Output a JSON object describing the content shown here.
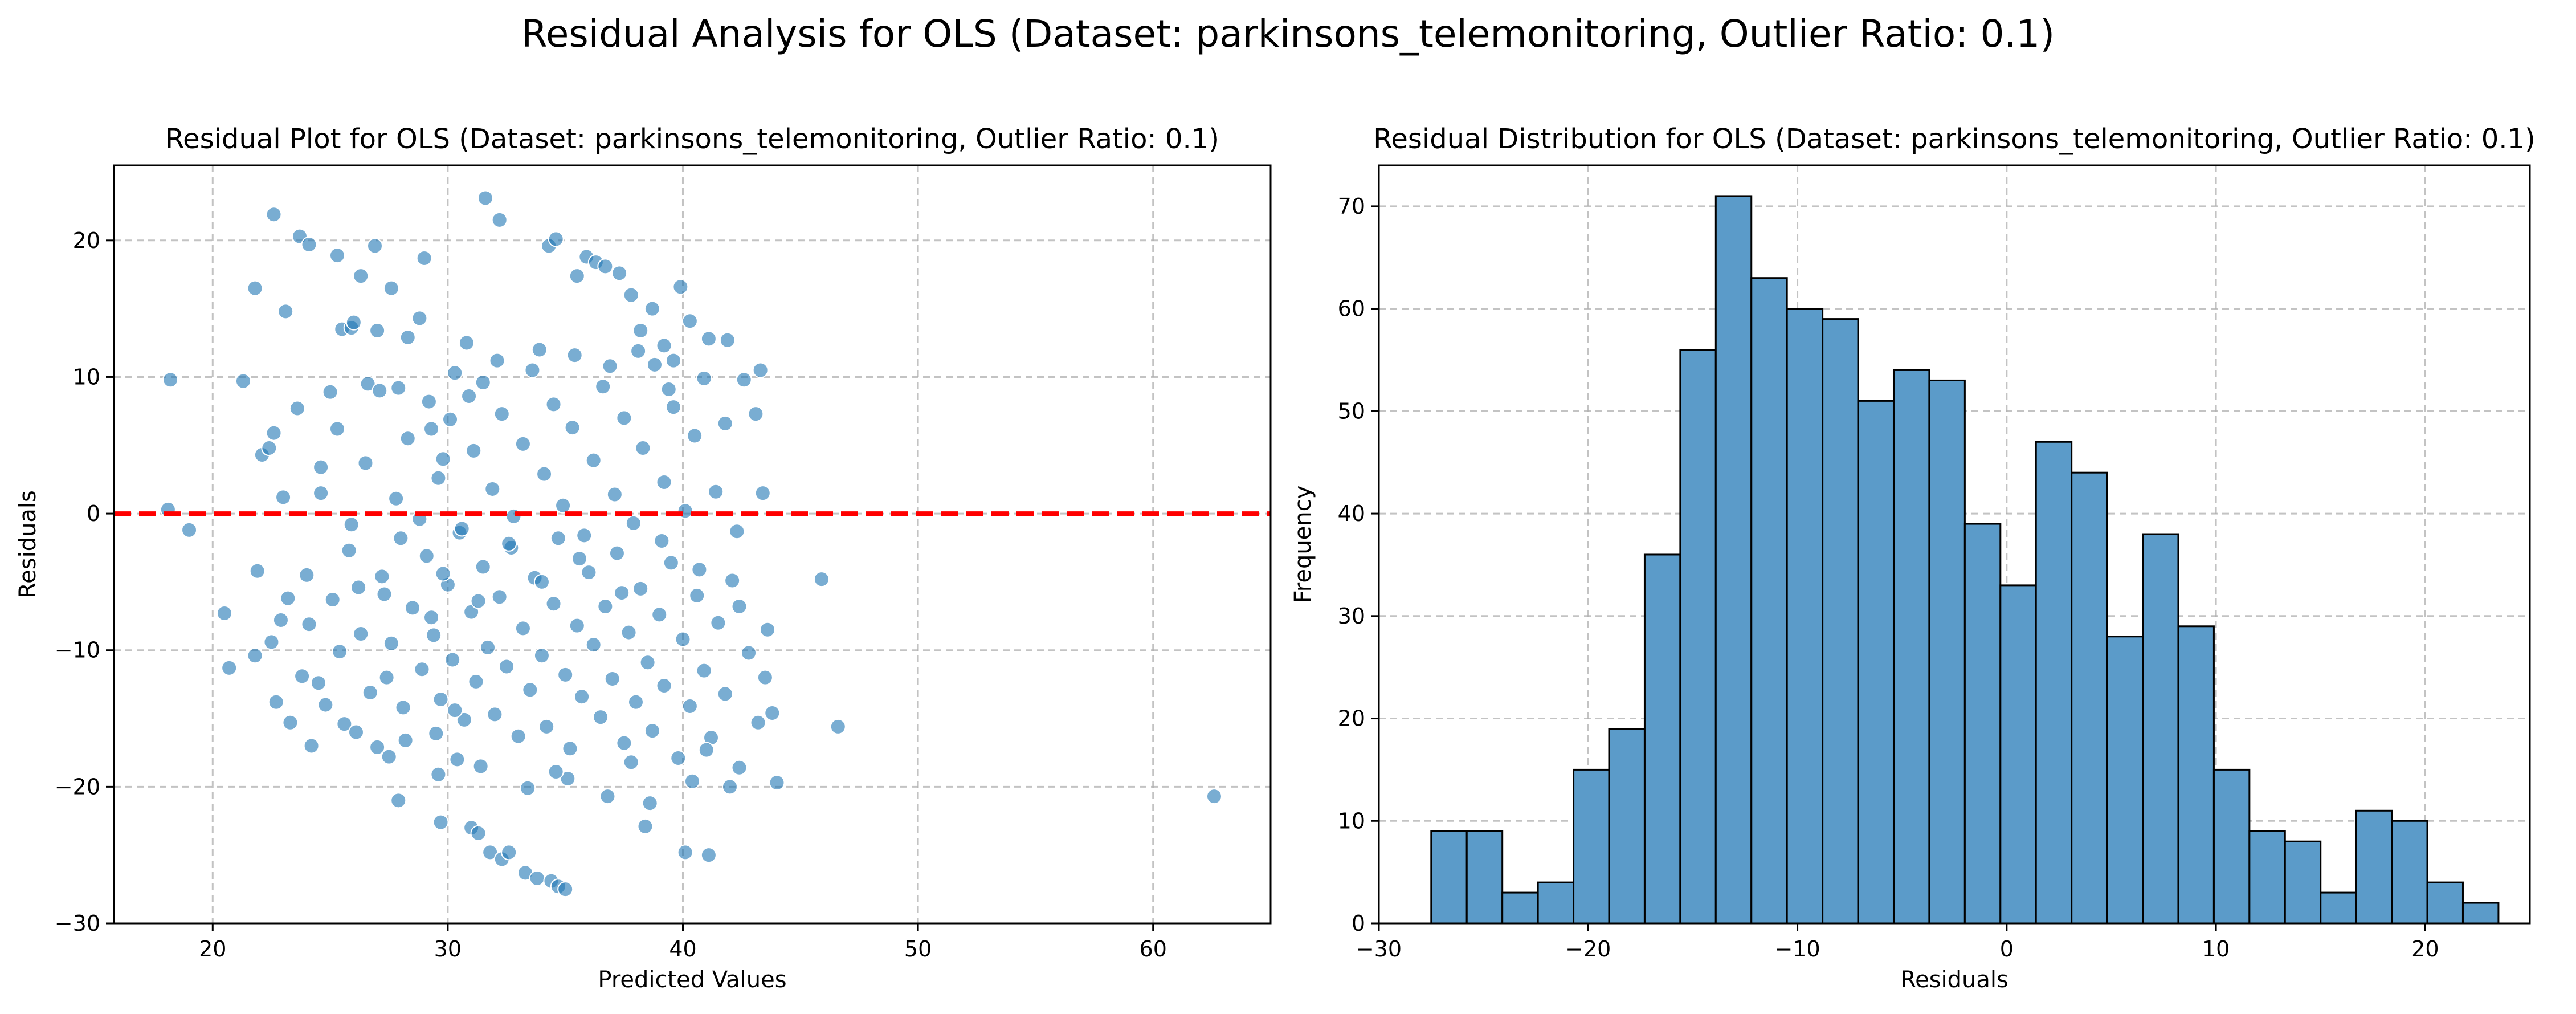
{
  "suptitle": "Residual Analysis for OLS (Dataset: parkinsons_telemonitoring, Outlier Ratio: 0.1)",
  "colors": {
    "point": "#1f77b4",
    "zero_line": "#ff0000",
    "hist_fill": "#5b9bc9",
    "hist_edge": "#000000",
    "grid": "#b0b0b0"
  },
  "chart_data": [
    {
      "type": "scatter",
      "title": "Residual Plot for OLS (Dataset: parkinsons_telemonitoring, Outlier Ratio: 0.1)",
      "xlabel": "Predicted Values",
      "ylabel": "Residuals",
      "xlim": [
        15.8,
        65
      ],
      "ylim": [
        -30,
        25.5
      ],
      "xticks": [
        20,
        30,
        40,
        50,
        60
      ],
      "yticks": [
        -30,
        -20,
        -10,
        0,
        10,
        20
      ],
      "grid": true,
      "reference_line": {
        "y": 0,
        "style": "dashed",
        "color": "#ff0000"
      },
      "points": [
        [
          18.2,
          9.8
        ],
        [
          18.1,
          0.3
        ],
        [
          19.0,
          -1.2
        ],
        [
          20.5,
          -7.3
        ],
        [
          20.7,
          -11.3
        ],
        [
          21.3,
          9.7
        ],
        [
          21.8,
          16.5
        ],
        [
          21.9,
          -4.2
        ],
        [
          21.8,
          -10.4
        ],
        [
          22.1,
          4.3
        ],
        [
          22.4,
          4.8
        ],
        [
          22.6,
          21.9
        ],
        [
          22.6,
          5.9
        ],
        [
          22.7,
          -13.8
        ],
        [
          23.1,
          14.8
        ],
        [
          23.0,
          1.2
        ],
        [
          23.3,
          -15.3
        ],
        [
          23.6,
          7.7
        ],
        [
          23.7,
          20.3
        ],
        [
          24.1,
          19.7
        ],
        [
          24.0,
          -4.5
        ],
        [
          24.2,
          -17.0
        ],
        [
          24.6,
          3.4
        ],
        [
          25.0,
          8.9
        ],
        [
          25.5,
          13.5
        ],
        [
          25.3,
          18.9
        ],
        [
          25.6,
          -15.4
        ],
        [
          25.9,
          13.6
        ],
        [
          26.0,
          14.0
        ],
        [
          26.2,
          -5.4
        ],
        [
          26.3,
          17.4
        ],
        [
          26.6,
          9.5
        ],
        [
          26.9,
          19.6
        ],
        [
          27.0,
          13.4
        ],
        [
          27.0,
          -17.1
        ],
        [
          27.4,
          -12.0
        ],
        [
          27.6,
          16.5
        ],
        [
          27.9,
          9.2
        ],
        [
          27.9,
          -21.0
        ],
        [
          28.3,
          12.9
        ],
        [
          28.8,
          14.3
        ],
        [
          29.0,
          18.7
        ],
        [
          29.3,
          -7.6
        ],
        [
          29.3,
          6.2
        ],
        [
          29.5,
          -16.1
        ],
        [
          29.7,
          -22.6
        ],
        [
          29.8,
          4.0
        ],
        [
          30.3,
          10.3
        ],
        [
          30.4,
          -18.0
        ],
        [
          30.8,
          12.5
        ],
        [
          31.0,
          -23.0
        ],
        [
          31.3,
          -23.4
        ],
        [
          31.6,
          23.1
        ],
        [
          31.8,
          -24.8
        ],
        [
          32.2,
          21.5
        ],
        [
          32.3,
          -25.3
        ],
        [
          32.6,
          -24.8
        ],
        [
          33.3,
          -26.3
        ],
        [
          33.8,
          -26.7
        ],
        [
          34.4,
          -26.9
        ],
        [
          34.7,
          -27.3
        ],
        [
          35.0,
          -27.5
        ],
        [
          34.3,
          19.6
        ],
        [
          34.6,
          20.1
        ],
        [
          35.5,
          17.4
        ],
        [
          35.9,
          18.8
        ],
        [
          36.3,
          18.4
        ],
        [
          36.7,
          18.1
        ],
        [
          37.3,
          17.6
        ],
        [
          37.8,
          16.0
        ],
        [
          38.2,
          13.4
        ],
        [
          38.4,
          -22.9
        ],
        [
          38.7,
          15.0
        ],
        [
          39.2,
          12.3
        ],
        [
          39.6,
          11.2
        ],
        [
          39.9,
          16.6
        ],
        [
          40.1,
          -24.8
        ],
        [
          40.3,
          14.1
        ],
        [
          41.1,
          -25.0
        ],
        [
          41.1,
          12.8
        ],
        [
          41.9,
          12.7
        ],
        [
          42.6,
          9.8
        ],
        [
          42.4,
          -6.8
        ],
        [
          43.1,
          7.3
        ],
        [
          43.3,
          10.5
        ],
        [
          43.4,
          1.5
        ],
        [
          43.6,
          -8.5
        ],
        [
          44.0,
          -19.7
        ],
        [
          45.9,
          -4.8
        ],
        [
          46.6,
          -15.6
        ],
        [
          62.6,
          -20.7
        ],
        [
          24.1,
          -8.1
        ],
        [
          24.5,
          -12.4
        ],
        [
          25.1,
          -6.3
        ],
        [
          25.4,
          -10.1
        ],
        [
          25.8,
          -2.7
        ],
        [
          26.3,
          -8.8
        ],
        [
          26.7,
          -13.1
        ],
        [
          27.2,
          -4.6
        ],
        [
          27.6,
          -9.5
        ],
        [
          28.0,
          -1.8
        ],
        [
          28.1,
          -14.2
        ],
        [
          28.5,
          -6.9
        ],
        [
          28.9,
          -11.4
        ],
        [
          29.1,
          -3.1
        ],
        [
          29.4,
          -8.9
        ],
        [
          29.7,
          -13.6
        ],
        [
          30.0,
          -5.2
        ],
        [
          30.2,
          -10.7
        ],
        [
          30.5,
          -1.4
        ],
        [
          30.7,
          -15.1
        ],
        [
          31.0,
          -7.2
        ],
        [
          31.2,
          -12.3
        ],
        [
          31.5,
          -3.9
        ],
        [
          31.7,
          -9.8
        ],
        [
          32.0,
          -14.7
        ],
        [
          32.2,
          -6.1
        ],
        [
          32.5,
          -11.2
        ],
        [
          32.7,
          -2.5
        ],
        [
          33.0,
          -16.3
        ],
        [
          33.2,
          -8.4
        ],
        [
          33.5,
          -12.9
        ],
        [
          33.7,
          -4.7
        ],
        [
          34.0,
          -10.4
        ],
        [
          34.2,
          -15.6
        ],
        [
          34.5,
          -6.6
        ],
        [
          34.7,
          -1.8
        ],
        [
          35.0,
          -11.8
        ],
        [
          35.2,
          -17.2
        ],
        [
          35.5,
          -8.2
        ],
        [
          35.7,
          -13.4
        ],
        [
          36.0,
          -4.3
        ],
        [
          36.2,
          -9.6
        ],
        [
          36.5,
          -14.9
        ],
        [
          36.7,
          -6.8
        ],
        [
          37.0,
          -12.1
        ],
        [
          37.2,
          -2.9
        ],
        [
          37.5,
          -16.8
        ],
        [
          37.7,
          -8.7
        ],
        [
          38.0,
          -13.8
        ],
        [
          38.2,
          -5.5
        ],
        [
          38.5,
          -10.9
        ],
        [
          38.7,
          -15.9
        ],
        [
          39.0,
          -7.4
        ],
        [
          39.2,
          -12.6
        ],
        [
          39.5,
          -3.6
        ],
        [
          39.8,
          -17.9
        ],
        [
          40.0,
          -9.2
        ],
        [
          40.3,
          -14.1
        ],
        [
          40.6,
          -6.0
        ],
        [
          40.9,
          -11.5
        ],
        [
          41.2,
          -16.4
        ],
        [
          41.5,
          -8.0
        ],
        [
          41.8,
          -13.2
        ],
        [
          42.1,
          -4.9
        ],
        [
          42.4,
          -18.6
        ],
        [
          42.8,
          -10.2
        ],
        [
          43.2,
          -15.3
        ],
        [
          43.5,
          -12.0
        ],
        [
          27.3,
          -5.9
        ],
        [
          28.2,
          -16.6
        ],
        [
          29.6,
          -19.1
        ],
        [
          31.4,
          -18.5
        ],
        [
          33.4,
          -20.1
        ],
        [
          35.1,
          -19.4
        ],
        [
          36.8,
          -20.7
        ],
        [
          38.6,
          -21.2
        ],
        [
          40.4,
          -19.6
        ],
        [
          42.0,
          -20.0
        ],
        [
          24.6,
          1.5
        ],
        [
          25.3,
          6.2
        ],
        [
          25.9,
          -0.8
        ],
        [
          26.5,
          3.7
        ],
        [
          27.1,
          9.0
        ],
        [
          27.8,
          1.1
        ],
        [
          28.3,
          5.5
        ],
        [
          28.8,
          -0.4
        ],
        [
          29.2,
          8.2
        ],
        [
          29.6,
          2.6
        ],
        [
          30.1,
          6.9
        ],
        [
          30.6,
          -1.1
        ],
        [
          31.1,
          4.6
        ],
        [
          31.5,
          9.6
        ],
        [
          31.9,
          1.8
        ],
        [
          32.3,
          7.3
        ],
        [
          32.8,
          -0.2
        ],
        [
          33.2,
          5.1
        ],
        [
          33.6,
          10.5
        ],
        [
          34.1,
          2.9
        ],
        [
          34.5,
          8.0
        ],
        [
          34.9,
          0.6
        ],
        [
          35.3,
          6.3
        ],
        [
          35.8,
          -1.6
        ],
        [
          36.2,
          3.9
        ],
        [
          36.6,
          9.3
        ],
        [
          37.1,
          1.4
        ],
        [
          37.5,
          7.0
        ],
        [
          37.9,
          -0.7
        ],
        [
          38.3,
          4.8
        ],
        [
          38.8,
          10.9
        ],
        [
          39.2,
          2.3
        ],
        [
          39.6,
          7.8
        ],
        [
          40.1,
          0.2
        ],
        [
          40.5,
          5.7
        ],
        [
          40.9,
          9.9
        ],
        [
          41.4,
          1.6
        ],
        [
          41.8,
          6.6
        ],
        [
          42.3,
          -1.3
        ],
        [
          29.8,
          -4.4
        ],
        [
          31.3,
          -6.4
        ],
        [
          32.6,
          -2.2
        ],
        [
          34.0,
          -5.0
        ],
        [
          35.6,
          -3.3
        ],
        [
          37.4,
          -5.8
        ],
        [
          39.1,
          -2.0
        ],
        [
          40.7,
          -4.1
        ],
        [
          23.2,
          -6.2
        ],
        [
          23.8,
          -11.9
        ],
        [
          22.5,
          -9.4
        ],
        [
          22.9,
          -7.8
        ],
        [
          30.9,
          8.6
        ],
        [
          32.1,
          11.2
        ],
        [
          33.9,
          12.0
        ],
        [
          35.4,
          11.6
        ],
        [
          36.9,
          10.8
        ],
        [
          38.1,
          11.9
        ],
        [
          39.4,
          9.1
        ],
        [
          24.8,
          -14.0
        ],
        [
          26.1,
          -16.0
        ],
        [
          27.5,
          -17.8
        ],
        [
          30.3,
          -14.4
        ],
        [
          34.6,
          -18.9
        ],
        [
          37.8,
          -18.2
        ],
        [
          41.0,
          -17.3
        ],
        [
          43.8,
          -14.6
        ]
      ]
    },
    {
      "type": "bar",
      "subtype": "histogram",
      "title": "Residual Distribution for OLS (Dataset: parkinsons_telemonitoring, Outlier Ratio: 0.1)",
      "xlabel": "Residuals",
      "ylabel": "Frequency",
      "xlim": [
        -30,
        25
      ],
      "ylim": [
        0,
        74
      ],
      "xticks": [
        -30,
        -20,
        -10,
        0,
        10,
        20
      ],
      "yticks": [
        0,
        10,
        20,
        30,
        40,
        50,
        60,
        70
      ],
      "grid": true,
      "bin_start": -27.5,
      "bin_width": 1.7,
      "counts": [
        9,
        9,
        3,
        4,
        15,
        19,
        36,
        56,
        71,
        63,
        60,
        59,
        51,
        54,
        53,
        39,
        33,
        47,
        44,
        28,
        38,
        29,
        15,
        9,
        8,
        3,
        11,
        10,
        4,
        2
      ]
    }
  ]
}
